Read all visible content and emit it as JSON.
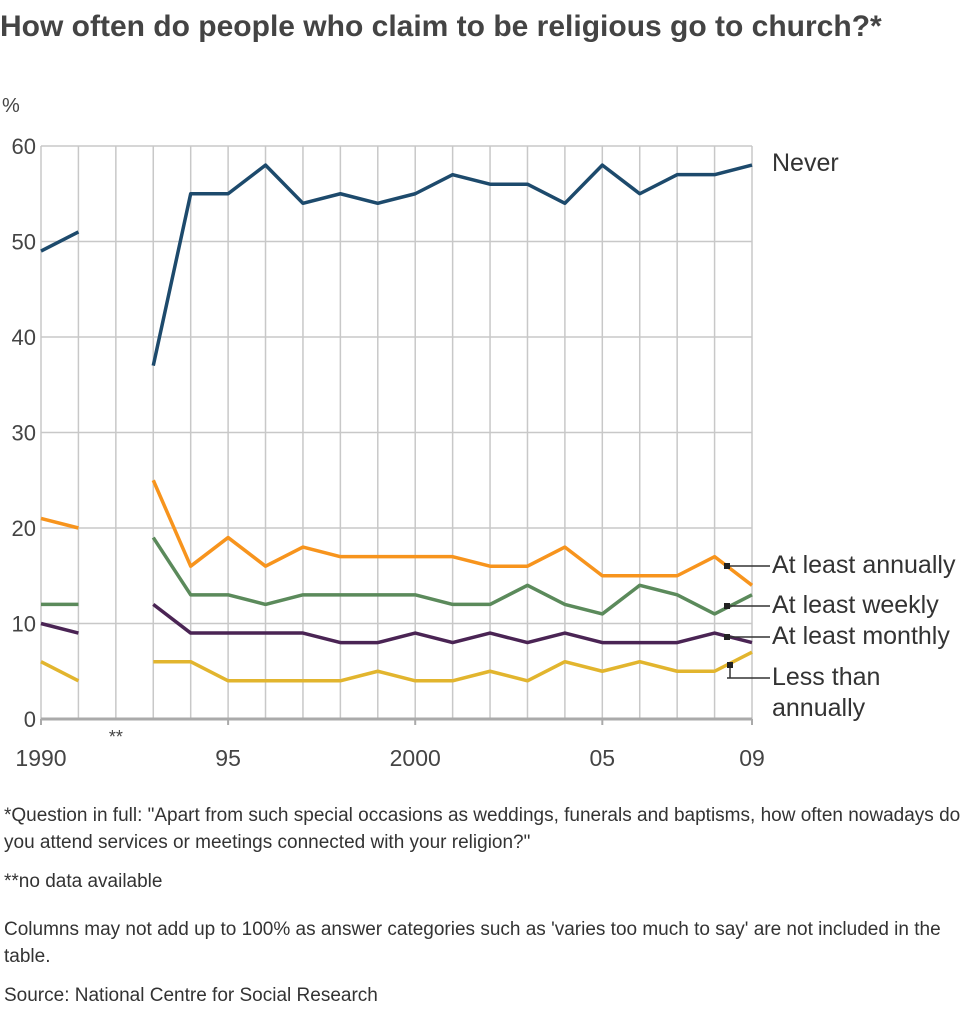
{
  "chart_data": {
    "type": "line",
    "title": "How often do people who claim to be religious go to church?*",
    "y_label": "%",
    "annotation": "**",
    "x": [
      1990,
      1991,
      1992,
      1993,
      1994,
      1995,
      1996,
      1997,
      1998,
      1999,
      2000,
      2001,
      2002,
      2003,
      2004,
      2005,
      2006,
      2007,
      2008,
      2009
    ],
    "annotation_x": 1992,
    "xlim": [
      1990,
      2009
    ],
    "xticks": [
      1990,
      {
        "value": 1995,
        "label": "95"
      },
      2000,
      {
        "value": 2005,
        "label": "05"
      },
      {
        "value": 2009,
        "label": "09"
      }
    ],
    "ylim": [
      0,
      60
    ],
    "yticks": [
      0,
      10,
      20,
      30,
      40,
      50,
      60
    ],
    "grid": true,
    "series": [
      {
        "name": "Never",
        "color": "#1d4a6c",
        "values": [
          49,
          51,
          null,
          37,
          55,
          55,
          58,
          54,
          55,
          54,
          55,
          57,
          56,
          56,
          54,
          58,
          55,
          57,
          57,
          58
        ]
      },
      {
        "name": "At least annually",
        "color": "#f7941d",
        "values": [
          21,
          20,
          null,
          25,
          16,
          19,
          16,
          18,
          17,
          17,
          17,
          17,
          16,
          16,
          18,
          15,
          15,
          15,
          17,
          14
        ]
      },
      {
        "name": "At least weekly",
        "color": "#5b8a5b",
        "values": [
          12,
          12,
          null,
          19,
          13,
          13,
          12,
          13,
          13,
          13,
          13,
          12,
          12,
          14,
          12,
          11,
          14,
          13,
          11,
          13
        ]
      },
      {
        "name": "At least monthly",
        "color": "#4a2454",
        "values": [
          10,
          9,
          null,
          12,
          9,
          9,
          9,
          9,
          8,
          8,
          9,
          8,
          9,
          8,
          9,
          8,
          8,
          8,
          9,
          8
        ]
      },
      {
        "name": "Less than annually",
        "color": "#e2b52e",
        "values": [
          6,
          4,
          null,
          6,
          6,
          4,
          4,
          4,
          4,
          5,
          4,
          4,
          5,
          4,
          6,
          5,
          6,
          5,
          5,
          7
        ]
      }
    ],
    "notes": [
      "*Question in full: \"Apart from such special occasions as weddings, funerals and baptisms, how often nowadays do you attend services or meetings connected with your religion?\"",
      "**no data available",
      "Columns may not add up to 100% as answer categories such as 'varies too much to say' are not included in the table.",
      "Source: National Centre for Social Research"
    ]
  }
}
